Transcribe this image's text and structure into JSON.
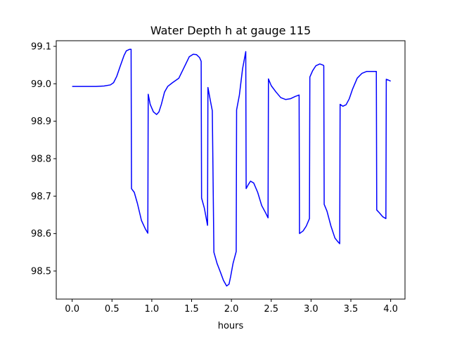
{
  "chart_data": {
    "type": "line",
    "title": "Water Depth h at gauge 115",
    "xlabel": "hours",
    "ylabel": "",
    "xlim": [
      -0.2,
      4.18
    ],
    "ylim": [
      98.425,
      99.115
    ],
    "grid": false,
    "xticks": [
      0.0,
      0.5,
      1.0,
      1.5,
      2.0,
      2.5,
      3.0,
      3.5,
      4.0
    ],
    "xtick_labels": [
      "0.0",
      "0.5",
      "1.0",
      "1.5",
      "2.0",
      "2.5",
      "3.0",
      "3.5",
      "4.0"
    ],
    "yticks": [
      98.5,
      98.6,
      98.7,
      98.8,
      98.9,
      99.0,
      99.1
    ],
    "ytick_labels": [
      "98.5",
      "98.6",
      "98.7",
      "98.8",
      "98.9",
      "99.0",
      "99.1"
    ],
    "series": [
      {
        "color": "#0000ff",
        "x": [
          0.0,
          0.1,
          0.2,
          0.3,
          0.4,
          0.48,
          0.52,
          0.56,
          0.6,
          0.65,
          0.68,
          0.72,
          0.74,
          0.745,
          0.78,
          0.82,
          0.87,
          0.92,
          0.95,
          0.955,
          0.98,
          1.02,
          1.06,
          1.09,
          1.12,
          1.16,
          1.2,
          1.26,
          1.34,
          1.42,
          1.47,
          1.52,
          1.56,
          1.6,
          1.62,
          1.625,
          1.66,
          1.7,
          1.705,
          1.74,
          1.76,
          1.78,
          1.82,
          1.86,
          1.9,
          1.94,
          1.97,
          1.99,
          2.02,
          2.06,
          2.065,
          2.1,
          2.14,
          2.18,
          2.185,
          2.21,
          2.24,
          2.28,
          2.33,
          2.38,
          2.43,
          2.46,
          2.465,
          2.5,
          2.56,
          2.62,
          2.68,
          2.74,
          2.8,
          2.85,
          2.855,
          2.9,
          2.94,
          2.98,
          2.985,
          3.02,
          3.06,
          3.11,
          3.15,
          3.16,
          3.165,
          3.2,
          3.25,
          3.3,
          3.33,
          3.36,
          3.365,
          3.4,
          3.44,
          3.48,
          3.52,
          3.58,
          3.64,
          3.7,
          3.75,
          3.8,
          3.82,
          3.825,
          3.86,
          3.9,
          3.94,
          3.945,
          3.97,
          4.0
        ],
        "y": [
          98.993,
          98.993,
          98.993,
          98.993,
          98.994,
          98.997,
          99.003,
          99.02,
          99.045,
          99.075,
          99.088,
          99.092,
          99.092,
          98.72,
          98.71,
          98.68,
          98.635,
          98.612,
          98.601,
          98.972,
          98.945,
          98.925,
          98.918,
          98.925,
          98.945,
          98.978,
          98.993,
          99.003,
          99.015,
          99.05,
          99.072,
          99.079,
          99.078,
          99.07,
          99.06,
          98.695,
          98.668,
          98.622,
          98.99,
          98.95,
          98.928,
          98.55,
          98.52,
          98.498,
          98.475,
          98.46,
          98.465,
          98.485,
          98.52,
          98.552,
          98.93,
          98.97,
          99.04,
          99.086,
          98.72,
          98.73,
          98.74,
          98.735,
          98.71,
          98.675,
          98.655,
          98.642,
          99.013,
          98.995,
          98.978,
          98.963,
          98.958,
          98.96,
          98.966,
          98.97,
          98.6,
          98.607,
          98.62,
          98.64,
          99.018,
          99.035,
          99.048,
          99.053,
          99.05,
          99.048,
          98.678,
          98.66,
          98.62,
          98.588,
          98.58,
          98.573,
          98.945,
          98.94,
          98.944,
          98.96,
          98.985,
          99.015,
          99.028,
          99.033,
          99.033,
          99.033,
          99.033,
          98.663,
          98.655,
          98.645,
          98.64,
          99.012,
          99.01,
          99.007
        ]
      }
    ]
  }
}
